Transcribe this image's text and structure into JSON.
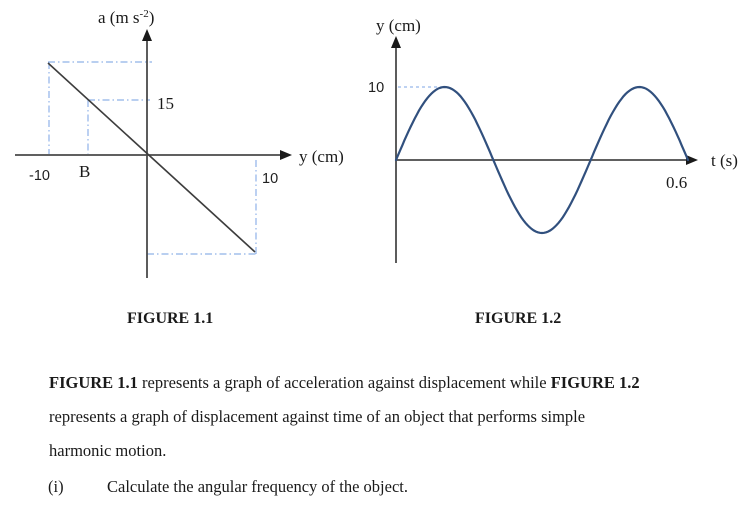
{
  "figures": {
    "fig1": {
      "a_label_main": "a (m s",
      "a_label_sup": "-2",
      "a_label_close": ")",
      "x_axis_label": "y (cm)",
      "tick_15": "15",
      "tick_neg10": "-10",
      "tick_B": "B",
      "tick_10": "10",
      "caption": "FIGURE 1.1"
    },
    "fig2": {
      "y_axis_label": "y (cm)",
      "x_axis_label": "t (s)",
      "tick_10": "10",
      "tick_06": "0.6",
      "caption": "FIGURE 1.2"
    }
  },
  "paragraph": {
    "bold1": "FIGURE 1.1",
    "line1_text": " represents a graph of acceleration against displacement while ",
    "bold2": "FIGURE 1.2",
    "line2": "represents a graph of displacement against time of an object that performs simple",
    "line3": "harmonic motion."
  },
  "question": {
    "number": "(i)",
    "text": "Calculate the angular frequency of the object."
  },
  "colors": {
    "guide_dash_blue": "#8fb2e8",
    "sine_navy": "#31507e",
    "axis_gray": "#4a4a4a"
  },
  "chart_data": [
    {
      "figure": "FIGURE 1.1",
      "type": "line",
      "title": "",
      "xlabel": "y (cm)",
      "ylabel": "a (m s^-2)",
      "description": "Straight line of negative slope through the origin (acceleration vs displacement for simple harmonic motion), running from displacement -10 cm (maximum positive acceleration, unlabeled) down to +10 cm (maximum negative acceleration, unlabeled).",
      "x_ticks": [
        -10,
        "B",
        10
      ],
      "y_ticks": [
        15
      ],
      "marked_point": {
        "y_cm": "B",
        "a_m_s2": 15
      },
      "guides": [
        "dashed lines from y = -10 up to the line and across to the a-axis",
        "dashed lines from y = B up to the line and across to a = 15",
        "dashed lines from y = 10 down to the line and across to the a-axis"
      ],
      "grid": false,
      "legend": false
    },
    {
      "figure": "FIGURE 1.2",
      "type": "line",
      "title": "",
      "xlabel": "t (s)",
      "ylabel": "y (cm)",
      "x": [
        0,
        0.1,
        0.2,
        0.3,
        0.4,
        0.5,
        0.6
      ],
      "y": [
        0,
        10,
        0,
        -10,
        0,
        10,
        0
      ],
      "amplitude_cm": 10,
      "cycles_shown": 1.5,
      "period_s": 0.4,
      "x_ticks": [
        0.6
      ],
      "y_ticks": [
        10
      ],
      "xlim": [
        0,
        0.6
      ],
      "guides": [
        "dashed line at y = 10 touching the first crest"
      ],
      "grid": false,
      "legend": false
    }
  ]
}
